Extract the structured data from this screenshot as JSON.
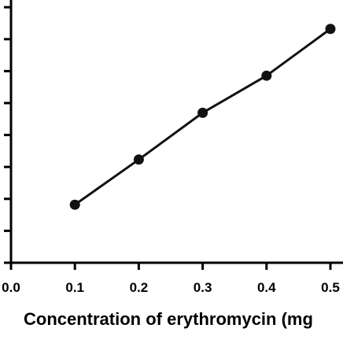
{
  "chart_data": {
    "type": "line",
    "xlabel": "Concentration of erythromycin (mg",
    "ylabel": "",
    "xlim": [
      0.0,
      0.5
    ],
    "x_ticks": [
      "0.0",
      "0.1",
      "0.2",
      "0.3",
      "0.4",
      "0.5"
    ],
    "y_tick_count": 9,
    "grid": false,
    "legend": "none",
    "marker_color": "#111111",
    "line_color": "#111111",
    "series": [
      {
        "x": [
          0.1,
          0.2,
          0.3,
          0.4,
          0.5
        ],
        "y": [
          0.18,
          0.32,
          0.465,
          0.58,
          0.725
        ]
      }
    ]
  }
}
